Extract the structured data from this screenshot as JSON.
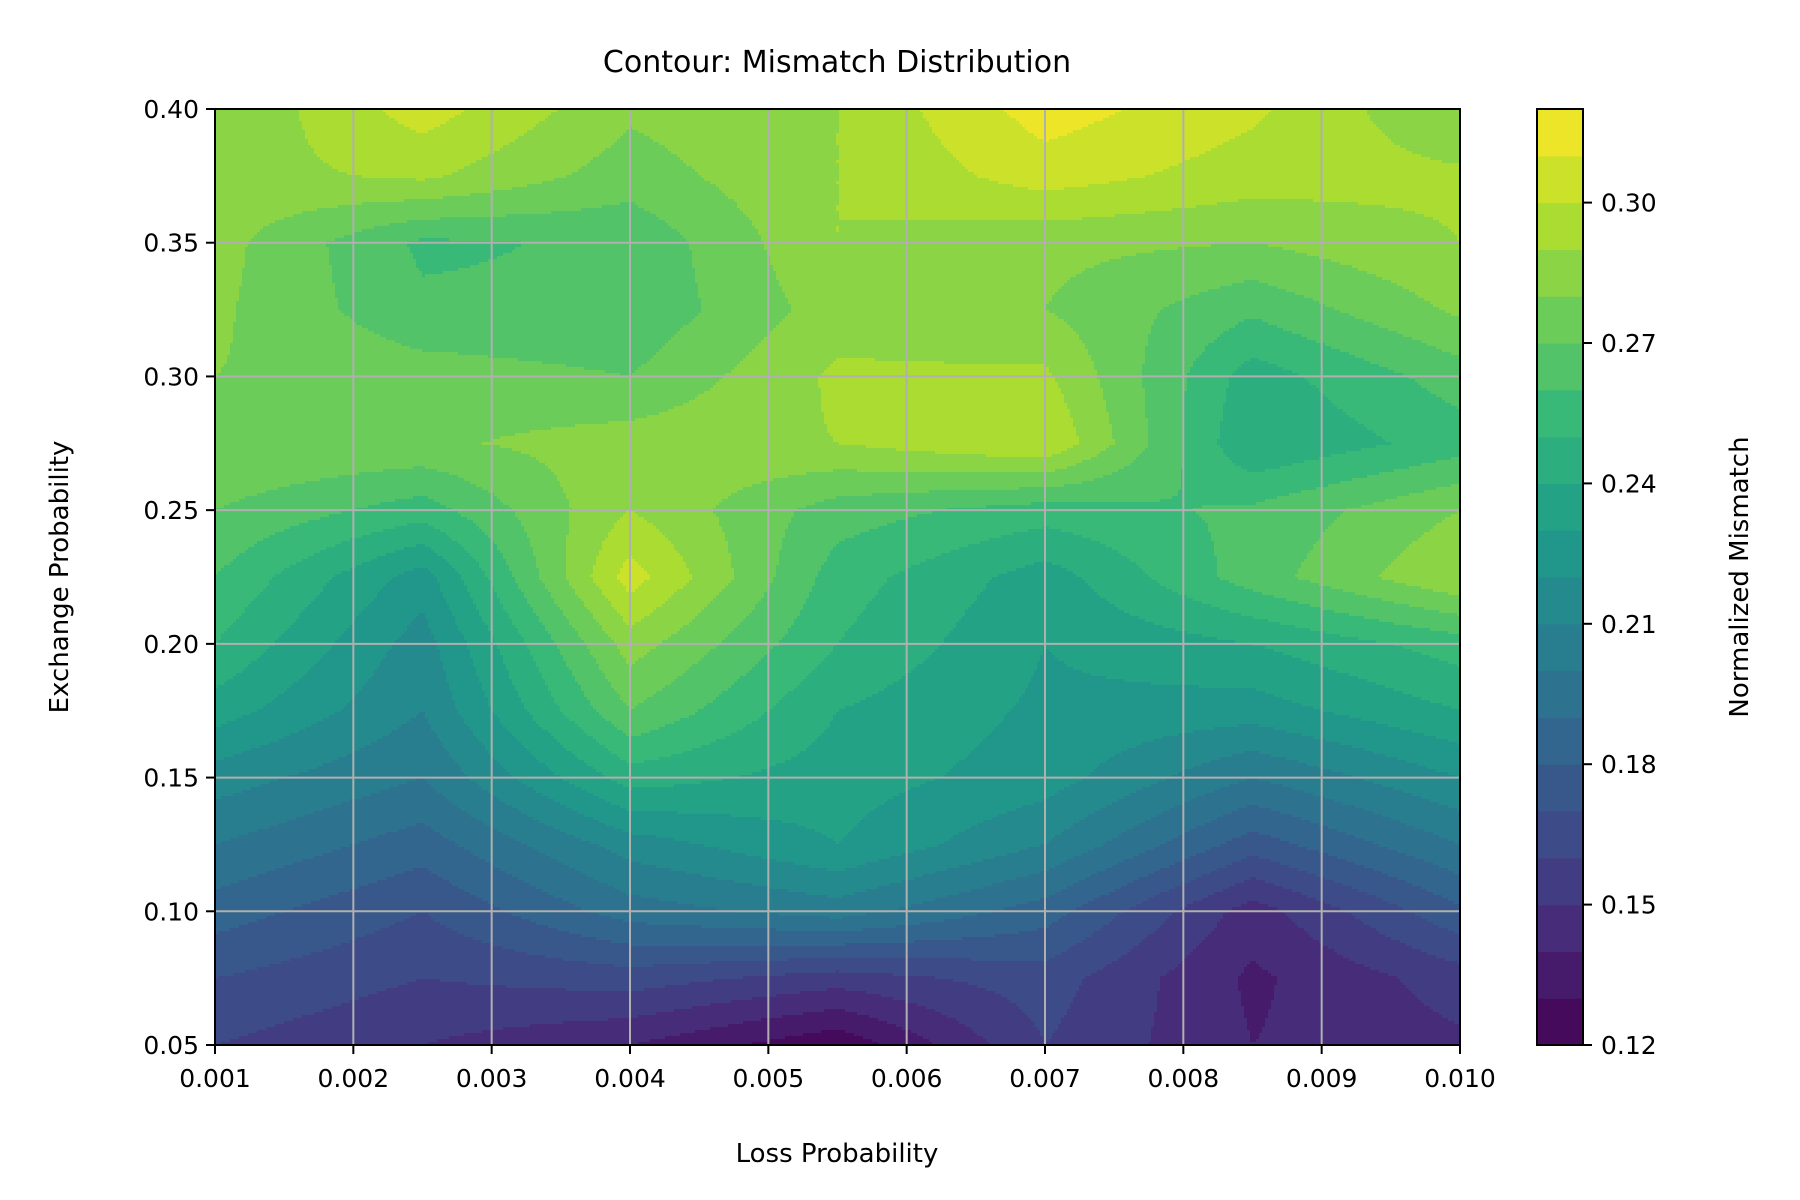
{
  "chart_data": {
    "type": "contour",
    "title": "Contour: Mismatch Distribution",
    "xlabel": "Loss Probability",
    "ylabel": "Exchange Probability",
    "colorbar_label": "Normalized Mismatch",
    "colormap": "viridis",
    "xlim": [
      0.001,
      0.01
    ],
    "ylim": [
      0.05,
      0.4
    ],
    "x": [
      0.001,
      0.0025,
      0.004,
      0.0055,
      0.007,
      0.0085,
      0.01
    ],
    "y": [
      0.05,
      0.075,
      0.1,
      0.125,
      0.15,
      0.175,
      0.2,
      0.225,
      0.25,
      0.275,
      0.3,
      0.325,
      0.35,
      0.375,
      0.4
    ],
    "z": [
      [
        0.16,
        0.15,
        0.14,
        0.122,
        0.16,
        0.14,
        0.148
      ],
      [
        0.17,
        0.16,
        0.165,
        0.155,
        0.165,
        0.138,
        0.155
      ],
      [
        0.185,
        0.17,
        0.195,
        0.205,
        0.185,
        0.145,
        0.178
      ],
      [
        0.2,
        0.185,
        0.215,
        0.23,
        0.21,
        0.175,
        0.2
      ],
      [
        0.215,
        0.2,
        0.245,
        0.235,
        0.225,
        0.2,
        0.22
      ],
      [
        0.235,
        0.21,
        0.27,
        0.24,
        0.228,
        0.225,
        0.24
      ],
      [
        0.25,
        0.215,
        0.285,
        0.25,
        0.23,
        0.24,
        0.255
      ],
      [
        0.26,
        0.225,
        0.305,
        0.255,
        0.235,
        0.265,
        0.29
      ],
      [
        0.27,
        0.255,
        0.29,
        0.265,
        0.255,
        0.262,
        0.28
      ],
      [
        0.28,
        0.278,
        0.285,
        0.29,
        0.3,
        0.24,
        0.255
      ],
      [
        0.28,
        0.275,
        0.27,
        0.292,
        0.292,
        0.245,
        0.265
      ],
      [
        0.282,
        0.262,
        0.262,
        0.285,
        0.28,
        0.262,
        0.282
      ],
      [
        0.284,
        0.258,
        0.262,
        0.29,
        0.283,
        0.28,
        0.29
      ],
      [
        0.286,
        0.292,
        0.275,
        0.29,
        0.305,
        0.295,
        0.292
      ],
      [
        0.28,
        0.305,
        0.282,
        0.29,
        0.315,
        0.302,
        0.28
      ]
    ],
    "levels_min": 0.12,
    "levels_max": 0.32,
    "levels_step": 0.01,
    "xticks": [
      "0.001",
      "0.002",
      "0.003",
      "0.004",
      "0.005",
      "0.006",
      "0.007",
      "0.008",
      "0.009",
      "0.010"
    ],
    "xtick_values": [
      0.001,
      0.002,
      0.003,
      0.004,
      0.005,
      0.006,
      0.007,
      0.008,
      0.009,
      0.01
    ],
    "yticks": [
      "0.05",
      "0.10",
      "0.15",
      "0.20",
      "0.25",
      "0.30",
      "0.35",
      "0.40"
    ],
    "ytick_values": [
      0.05,
      0.1,
      0.15,
      0.2,
      0.25,
      0.3,
      0.35,
      0.4
    ],
    "colorbar_ticks": [
      "0.12",
      "0.15",
      "0.18",
      "0.21",
      "0.24",
      "0.27",
      "0.30"
    ],
    "colorbar_tick_values": [
      0.12,
      0.15,
      0.18,
      0.21,
      0.24,
      0.27,
      0.3
    ],
    "grid": true,
    "grid_color": "#b0b0b0"
  }
}
